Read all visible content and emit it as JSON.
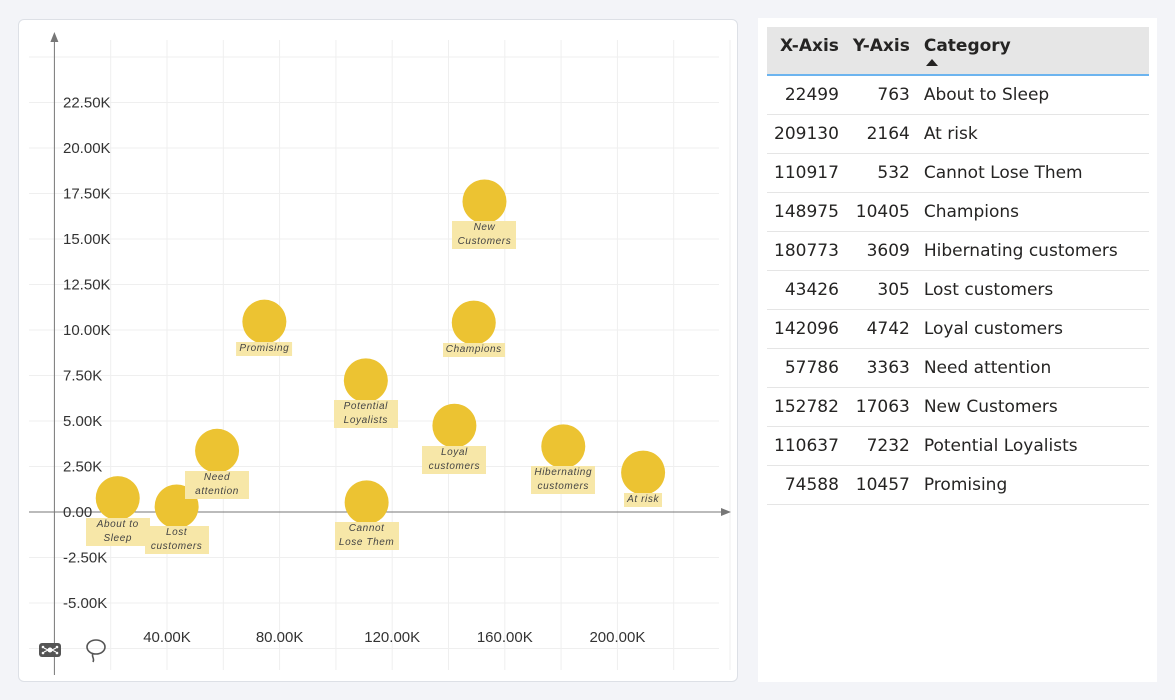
{
  "chart_data": {
    "type": "scatter",
    "title": "",
    "xlabel": "",
    "ylabel": "",
    "xlim": [
      0,
      240000
    ],
    "ylim": [
      -7500,
      25000
    ],
    "x_ticks": [
      "40.00K",
      "80.00K",
      "120.00K",
      "160.00K",
      "200.00K"
    ],
    "x_tick_values": [
      40000,
      80000,
      120000,
      160000,
      200000
    ],
    "y_ticks": [
      "-5.00K",
      "-2.50K",
      "0.00",
      "2.50K",
      "5.00K",
      "7.50K",
      "10.00K",
      "12.50K",
      "15.00K",
      "17.50K",
      "20.00K",
      "22.50K"
    ],
    "y_tick_values": [
      -5000,
      -2500,
      0,
      2500,
      5000,
      7500,
      10000,
      12500,
      15000,
      17500,
      20000,
      22500
    ],
    "grid": true,
    "marker_color": "#ecc332",
    "label_bg": "#f7e7a8",
    "points": [
      {
        "label": "About to Sleep",
        "x": 22499,
        "y": 763
      },
      {
        "label": "At risk",
        "x": 209130,
        "y": 2164
      },
      {
        "label": "Cannot Lose Them",
        "x": 110917,
        "y": 532
      },
      {
        "label": "Champions",
        "x": 148975,
        "y": 10405
      },
      {
        "label": "Hibernating customers",
        "x": 180773,
        "y": 3609
      },
      {
        "label": "Lost customers",
        "x": 43426,
        "y": 305
      },
      {
        "label": "Loyal customers",
        "x": 142096,
        "y": 4742
      },
      {
        "label": "Need attention",
        "x": 57786,
        "y": 3363
      },
      {
        "label": "New Customers",
        "x": 152782,
        "y": 17063
      },
      {
        "label": "Potential Loyalists",
        "x": 110637,
        "y": 7232
      },
      {
        "label": "Promising",
        "x": 74588,
        "y": 10457
      }
    ]
  },
  "toolbar": {
    "icons": [
      "focus-mode-icon",
      "lasso-select-icon"
    ]
  },
  "table": {
    "headers": [
      "X-Axis",
      "Y-Axis",
      "Category"
    ],
    "sorted_column": "Category",
    "sort_direction": "ascending",
    "accent": "#6cb4ef",
    "rows": [
      [
        "22499",
        "763",
        "About to Sleep"
      ],
      [
        "209130",
        "2164",
        "At risk"
      ],
      [
        "110917",
        "532",
        "Cannot Lose Them"
      ],
      [
        "148975",
        "10405",
        "Champions"
      ],
      [
        "180773",
        "3609",
        "Hibernating customers"
      ],
      [
        "43426",
        "305",
        "Lost customers"
      ],
      [
        "142096",
        "4742",
        "Loyal customers"
      ],
      [
        "57786",
        "3363",
        "Need attention"
      ],
      [
        "152782",
        "17063",
        "New Customers"
      ],
      [
        "110637",
        "7232",
        "Potential Loyalists"
      ],
      [
        "74588",
        "10457",
        "Promising"
      ]
    ]
  }
}
